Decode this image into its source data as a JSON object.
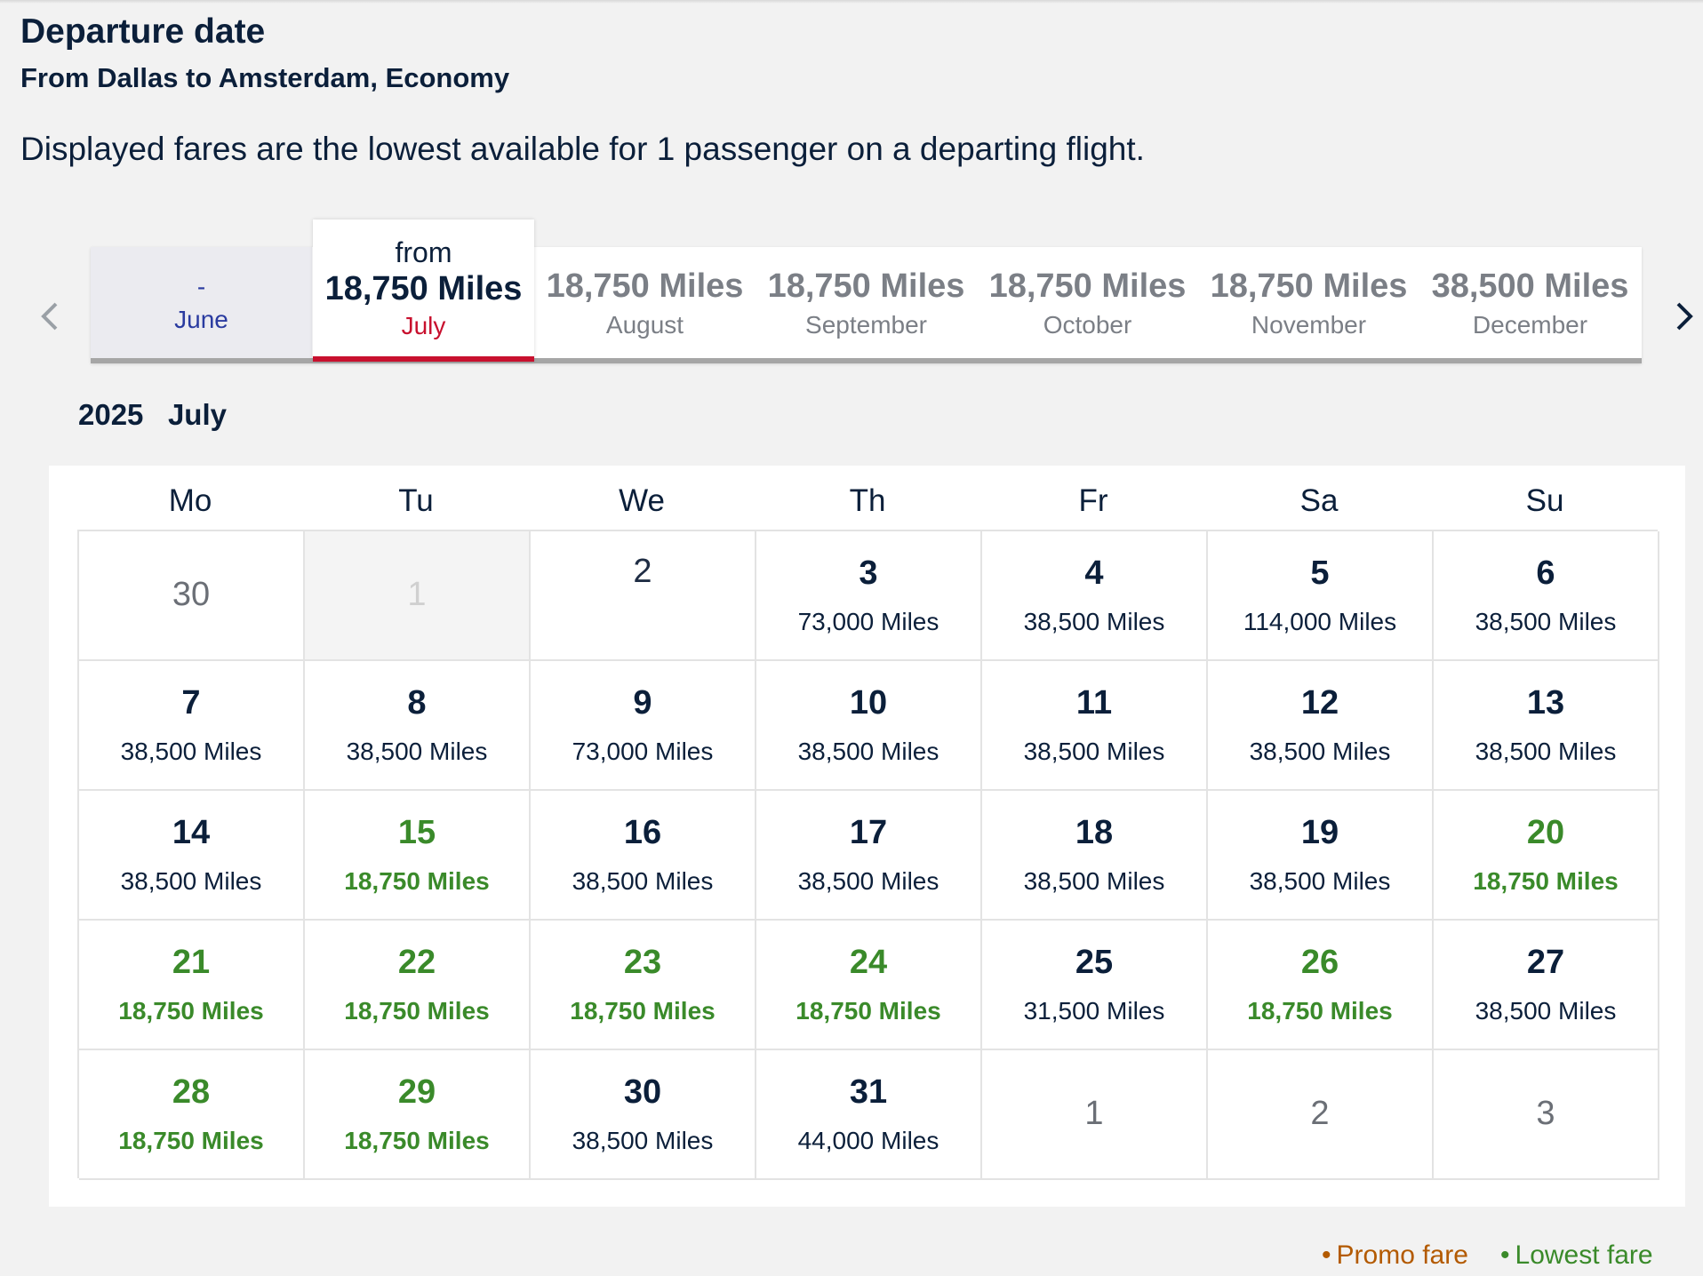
{
  "header": {
    "title": "Departure date",
    "route": "From Dallas to Amsterdam, Economy",
    "info": "Displayed fares are the lowest available for 1 passenger on a departing flight."
  },
  "months": [
    {
      "price": "-",
      "name": "June",
      "state": "disabled"
    },
    {
      "from": "from",
      "price": "18,750 Miles",
      "name": "July",
      "state": "active"
    },
    {
      "price": "18,750 Miles",
      "name": "August",
      "state": "normal"
    },
    {
      "price": "18,750 Miles",
      "name": "September",
      "state": "normal"
    },
    {
      "price": "18,750 Miles",
      "name": "October",
      "state": "normal"
    },
    {
      "price": "18,750 Miles",
      "name": "November",
      "state": "normal"
    },
    {
      "price": "38,500 Miles",
      "name": "December",
      "state": "normal"
    }
  ],
  "icons": {
    "prev": "chevron-left-icon",
    "next": "chevron-right-icon"
  },
  "calendar": {
    "year": "2025",
    "month": "July",
    "weekdays": [
      "Mo",
      "Tu",
      "We",
      "Th",
      "Fr",
      "Sa",
      "Su"
    ],
    "weeks": [
      [
        {
          "day": "30",
          "fare": "",
          "type": "other"
        },
        {
          "day": "1",
          "fare": "",
          "type": "past"
        },
        {
          "day": "2",
          "fare": "",
          "type": "nofare"
        },
        {
          "day": "3",
          "fare": "73,000 Miles",
          "type": "normal"
        },
        {
          "day": "4",
          "fare": "38,500 Miles",
          "type": "normal"
        },
        {
          "day": "5",
          "fare": "114,000 Miles",
          "type": "normal"
        },
        {
          "day": "6",
          "fare": "38,500 Miles",
          "type": "normal"
        }
      ],
      [
        {
          "day": "7",
          "fare": "38,500 Miles",
          "type": "normal"
        },
        {
          "day": "8",
          "fare": "38,500 Miles",
          "type": "normal"
        },
        {
          "day": "9",
          "fare": "73,000 Miles",
          "type": "normal"
        },
        {
          "day": "10",
          "fare": "38,500 Miles",
          "type": "normal"
        },
        {
          "day": "11",
          "fare": "38,500 Miles",
          "type": "normal"
        },
        {
          "day": "12",
          "fare": "38,500 Miles",
          "type": "normal"
        },
        {
          "day": "13",
          "fare": "38,500 Miles",
          "type": "normal"
        }
      ],
      [
        {
          "day": "14",
          "fare": "38,500 Miles",
          "type": "normal"
        },
        {
          "day": "15",
          "fare": "18,750 Miles",
          "type": "lowest"
        },
        {
          "day": "16",
          "fare": "38,500 Miles",
          "type": "normal"
        },
        {
          "day": "17",
          "fare": "38,500 Miles",
          "type": "normal"
        },
        {
          "day": "18",
          "fare": "38,500 Miles",
          "type": "normal"
        },
        {
          "day": "19",
          "fare": "38,500 Miles",
          "type": "normal"
        },
        {
          "day": "20",
          "fare": "18,750 Miles",
          "type": "lowest"
        }
      ],
      [
        {
          "day": "21",
          "fare": "18,750 Miles",
          "type": "lowest"
        },
        {
          "day": "22",
          "fare": "18,750 Miles",
          "type": "lowest"
        },
        {
          "day": "23",
          "fare": "18,750 Miles",
          "type": "lowest"
        },
        {
          "day": "24",
          "fare": "18,750 Miles",
          "type": "lowest"
        },
        {
          "day": "25",
          "fare": "31,500 Miles",
          "type": "normal"
        },
        {
          "day": "26",
          "fare": "18,750 Miles",
          "type": "lowest"
        },
        {
          "day": "27",
          "fare": "38,500 Miles",
          "type": "normal"
        }
      ],
      [
        {
          "day": "28",
          "fare": "18,750 Miles",
          "type": "lowest"
        },
        {
          "day": "29",
          "fare": "18,750 Miles",
          "type": "lowest"
        },
        {
          "day": "30",
          "fare": "38,500 Miles",
          "type": "normal"
        },
        {
          "day": "31",
          "fare": "44,000 Miles",
          "type": "normal"
        },
        {
          "day": "1",
          "fare": "",
          "type": "other"
        },
        {
          "day": "2",
          "fare": "",
          "type": "other"
        },
        {
          "day": "3",
          "fare": "",
          "type": "other"
        }
      ]
    ]
  },
  "legend": {
    "promo": "Promo fare",
    "lowest": "Lowest fare",
    "bullet": "•"
  },
  "colors": {
    "navy": "#0b1f3a",
    "lowest_green": "#3a8a2a",
    "active_red": "#c8102e",
    "promo_orange": "#b35a00",
    "disabled_blue": "#2a3ba0"
  }
}
